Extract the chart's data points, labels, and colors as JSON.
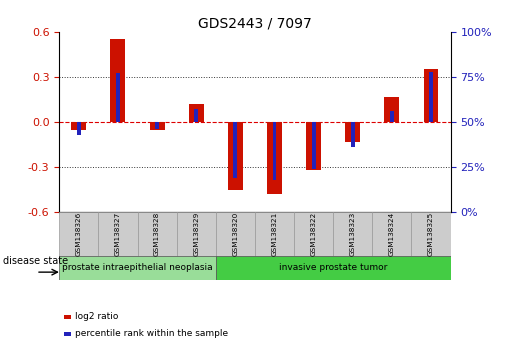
{
  "title": "GDS2443 / 7097",
  "samples": [
    "GSM138326",
    "GSM138327",
    "GSM138328",
    "GSM138329",
    "GSM138320",
    "GSM138321",
    "GSM138322",
    "GSM138323",
    "GSM138324",
    "GSM138325"
  ],
  "log2_ratio": [
    -0.05,
    0.55,
    -0.05,
    0.12,
    -0.45,
    -0.48,
    -0.32,
    -0.13,
    0.17,
    0.35
  ],
  "percentile_rank": [
    43,
    77,
    46,
    57,
    19,
    18,
    24,
    36,
    56,
    78
  ],
  "red_bar_width": 0.38,
  "blue_bar_width": 0.1,
  "ylim": [
    -0.6,
    0.6
  ],
  "yticks_left": [
    -0.6,
    -0.3,
    0.0,
    0.3,
    0.6
  ],
  "yticks_right_labels": [
    "0%",
    "25%",
    "50%",
    "75%",
    "100%"
  ],
  "red_color": "#cc1100",
  "blue_color": "#2222bb",
  "zero_line_color": "#dd0000",
  "dot_line_color": "#333333",
  "disease_groups": [
    {
      "label": "prostate intraepithelial neoplasia",
      "start": 0,
      "end": 4,
      "color": "#99dd99"
    },
    {
      "label": "invasive prostate tumor",
      "start": 4,
      "end": 10,
      "color": "#44cc44"
    }
  ],
  "legend_items": [
    {
      "label": "log2 ratio",
      "color": "#cc1100"
    },
    {
      "label": "percentile rank within the sample",
      "color": "#2222bb"
    }
  ],
  "disease_state_label": "disease state",
  "bg_color": "#ffffff",
  "box_color": "#cccccc",
  "box_edge_color": "#999999"
}
